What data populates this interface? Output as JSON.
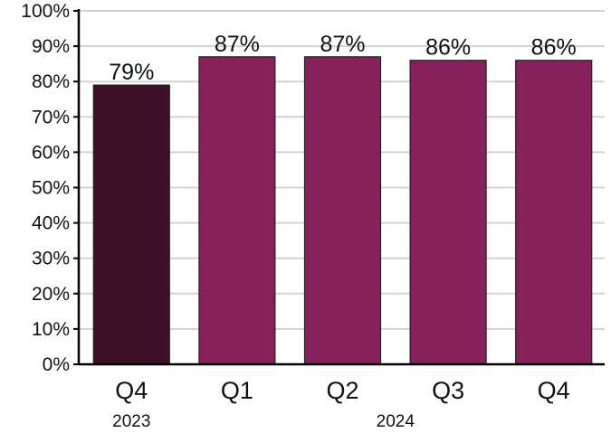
{
  "chart_data": {
    "type": "bar",
    "categories": [
      "Q4",
      "Q1",
      "Q2",
      "Q3",
      "Q4"
    ],
    "category_groups": [
      {
        "label": "2023",
        "members": [
          0
        ]
      },
      {
        "label": "2024",
        "members": [
          1,
          2,
          3,
          4
        ]
      }
    ],
    "values": [
      79,
      87,
      87,
      86,
      86
    ],
    "data_labels": [
      "79%",
      "87%",
      "87%",
      "86%",
      "86%"
    ],
    "bar_colors": [
      "#3d1028",
      "#87215c",
      "#87215c",
      "#87215c",
      "#87215c"
    ],
    "ylim": [
      0,
      100
    ],
    "yticks": [
      0,
      10,
      20,
      30,
      40,
      50,
      60,
      70,
      80,
      90,
      100
    ],
    "ytick_labels": [
      "0%",
      "10%",
      "20%",
      "30%",
      "40%",
      "50%",
      "60%",
      "70%",
      "80%",
      "90%",
      "100%"
    ],
    "grid": true,
    "gridline_color": "#d3d3d3",
    "title": "",
    "xlabel": "",
    "ylabel": ""
  }
}
